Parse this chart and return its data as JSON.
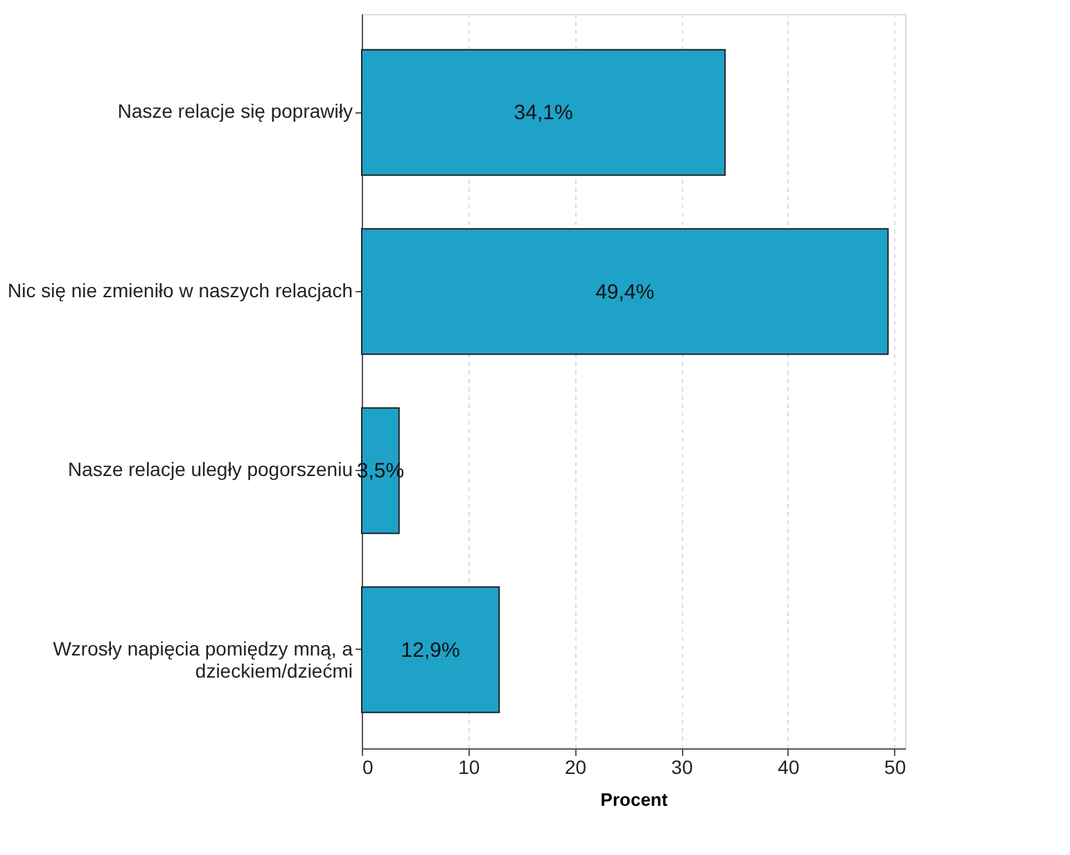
{
  "chart_data": {
    "type": "bar",
    "orientation": "horizontal",
    "categories": [
      "Nasze relacje się poprawiły",
      "Nic się nie zmieniło w naszych relacjach",
      "Nasze relacje uległy pogorszeniu",
      "Wzrosły napięcia pomiędzy mną, a dzieckiem/dziećmi"
    ],
    "values": [
      34.1,
      49.4,
      3.5,
      12.9
    ],
    "value_labels": [
      "34,1%",
      "49,4%",
      "3,5%",
      "12,9%"
    ],
    "color": "#1fa2c8",
    "xlabel": "Procent",
    "xlim": [
      0,
      51
    ],
    "xticks": [
      0,
      10,
      20,
      30,
      40,
      50
    ],
    "grid": "x"
  }
}
